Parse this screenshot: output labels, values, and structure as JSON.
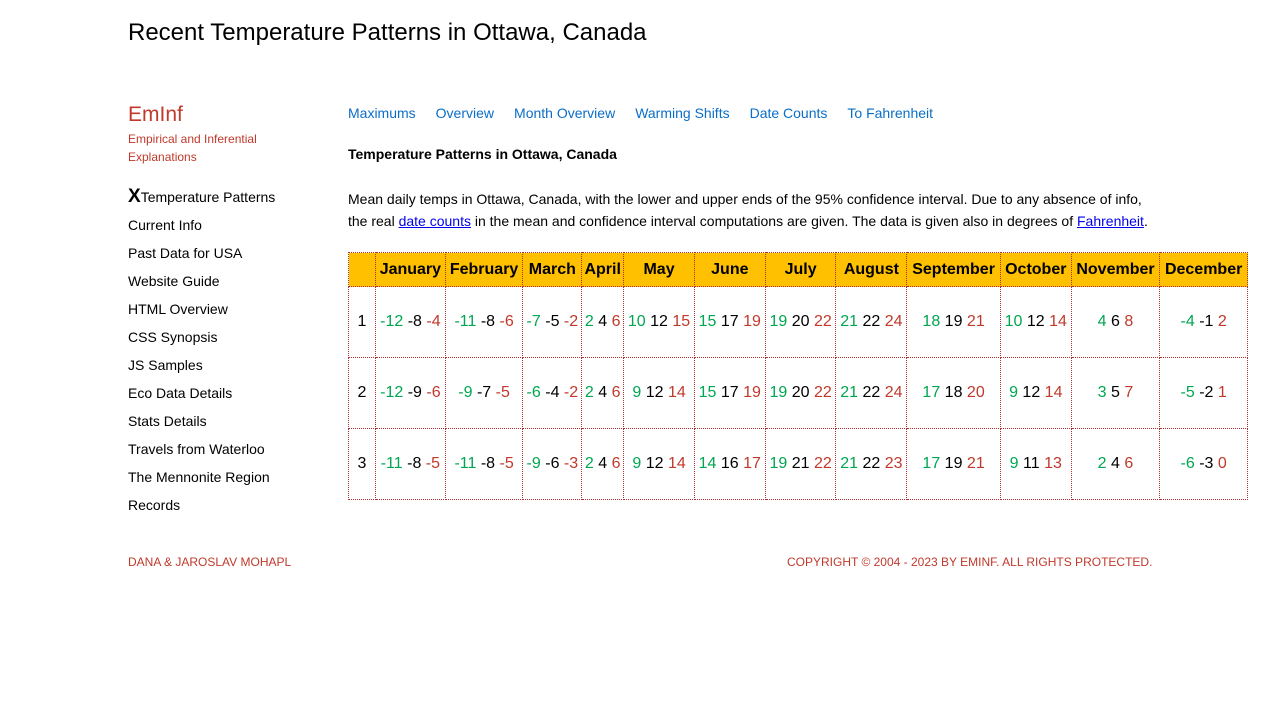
{
  "page_title": "Recent Temperature Patterns in Ottawa, Canada",
  "brand": {
    "name": "EmInf",
    "tagline": "Empirical and Inferential Explanations"
  },
  "sidebar": {
    "current_marker": "X",
    "items": [
      {
        "label": "Temperature Patterns",
        "current": true
      },
      {
        "label": "Current Info"
      },
      {
        "label": "Past Data for USA"
      },
      {
        "label": "Website Guide"
      },
      {
        "label": "HTML Overview"
      },
      {
        "label": "CSS Synopsis"
      },
      {
        "label": "JS Samples"
      },
      {
        "label": "Eco Data Details"
      },
      {
        "label": "Stats Details"
      },
      {
        "label": "Travels from Waterloo"
      },
      {
        "label": "The Mennonite Region"
      },
      {
        "label": "Records"
      }
    ]
  },
  "top_nav": [
    "Maximums",
    "Overview",
    "Month Overview",
    "Warming Shifts",
    "Date Counts",
    "To Fahrenheit"
  ],
  "section_heading": "Temperature Patterns in Ottawa, Canada",
  "description": {
    "part1": "Mean daily temps in Ottawa, Canada, with the lower and upper ends of the 95% confidence interval. Due to any absence of info, the real ",
    "link1": "date counts",
    "part2": " in the mean and confidence interval computations are given. The data is given also in degrees of ",
    "link2": "Fahrenheit",
    "part3": "."
  },
  "colors": {
    "lower_bound": "#00a651",
    "upper_bound": "#c0392b",
    "header_bg": "#ffc000",
    "link": "#0a6ec9"
  },
  "table": {
    "months": [
      "January",
      "February",
      "March",
      "April",
      "May",
      "June",
      "July",
      "August",
      "September",
      "October",
      "November",
      "December"
    ],
    "rows": [
      {
        "day": "1",
        "cells": [
          {
            "lo": "-12",
            "mean": "-8",
            "hi": "-4"
          },
          {
            "lo": "-11",
            "mean": "-8",
            "hi": "-6"
          },
          {
            "lo": "-7",
            "mean": "-5",
            "hi": "-2"
          },
          {
            "lo": "2",
            "mean": "4",
            "hi": "6"
          },
          {
            "lo": "10",
            "mean": "12",
            "hi": "15"
          },
          {
            "lo": "15",
            "mean": "17",
            "hi": "19"
          },
          {
            "lo": "19",
            "mean": "20",
            "hi": "22"
          },
          {
            "lo": "21",
            "mean": "22",
            "hi": "24"
          },
          {
            "lo": "18",
            "mean": "19",
            "hi": "21"
          },
          {
            "lo": "10",
            "mean": "12",
            "hi": "14"
          },
          {
            "lo": "4",
            "mean": "6",
            "hi": "8"
          },
          {
            "lo": "-4",
            "mean": "-1",
            "hi": "2"
          }
        ]
      },
      {
        "day": "2",
        "cells": [
          {
            "lo": "-12",
            "mean": "-9",
            "hi": "-6"
          },
          {
            "lo": "-9",
            "mean": "-7",
            "hi": "-5"
          },
          {
            "lo": "-6",
            "mean": "-4",
            "hi": "-2"
          },
          {
            "lo": "2",
            "mean": "4",
            "hi": "6"
          },
          {
            "lo": "9",
            "mean": "12",
            "hi": "14"
          },
          {
            "lo": "15",
            "mean": "17",
            "hi": "19"
          },
          {
            "lo": "19",
            "mean": "20",
            "hi": "22"
          },
          {
            "lo": "21",
            "mean": "22",
            "hi": "24"
          },
          {
            "lo": "17",
            "mean": "18",
            "hi": "20"
          },
          {
            "lo": "9",
            "mean": "12",
            "hi": "14"
          },
          {
            "lo": "3",
            "mean": "5",
            "hi": "7"
          },
          {
            "lo": "-5",
            "mean": "-2",
            "hi": "1"
          }
        ]
      },
      {
        "day": "3",
        "cells": [
          {
            "lo": "-11",
            "mean": "-8",
            "hi": "-5"
          },
          {
            "lo": "-11",
            "mean": "-8",
            "hi": "-5"
          },
          {
            "lo": "-9",
            "mean": "-6",
            "hi": "-3"
          },
          {
            "lo": "2",
            "mean": "4",
            "hi": "6"
          },
          {
            "lo": "9",
            "mean": "12",
            "hi": "14"
          },
          {
            "lo": "14",
            "mean": "16",
            "hi": "17"
          },
          {
            "lo": "19",
            "mean": "21",
            "hi": "22"
          },
          {
            "lo": "21",
            "mean": "22",
            "hi": "23"
          },
          {
            "lo": "17",
            "mean": "19",
            "hi": "21"
          },
          {
            "lo": "9",
            "mean": "11",
            "hi": "13"
          },
          {
            "lo": "2",
            "mean": "4",
            "hi": "6"
          },
          {
            "lo": "-6",
            "mean": "-3",
            "hi": "0"
          }
        ]
      }
    ]
  },
  "footer": {
    "left": "DANA & JAROSLAV MOHAPL",
    "right": "COPYRIGHT © 2004 - 2023 BY EMINF. ALL RIGHTS PROTECTED."
  }
}
